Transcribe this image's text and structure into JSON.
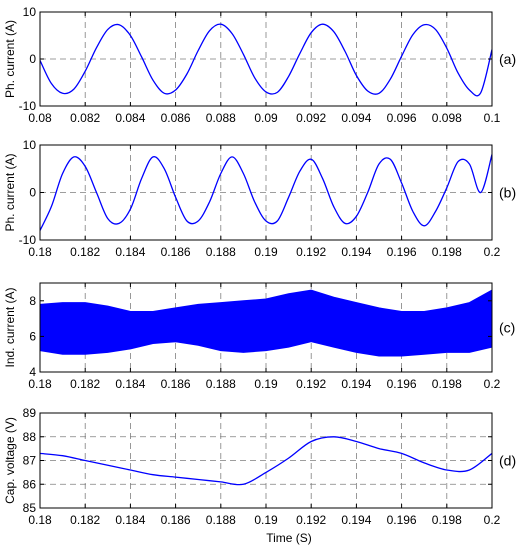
{
  "figure": {
    "xlabel": "Time (S)"
  },
  "chart_data": [
    {
      "type": "line",
      "panel_label": "(a)",
      "ylabel": "Ph. current (A)",
      "xlim": [
        0.08,
        0.1
      ],
      "ylim": [
        -10,
        10
      ],
      "xticks": [
        0.08,
        0.082,
        0.084,
        0.086,
        0.088,
        0.09,
        0.092,
        0.094,
        0.096,
        0.098,
        0.1
      ],
      "xtick_labels": [
        "0.08",
        "0.082",
        "0.084",
        "0.086",
        "0.088",
        "0.09",
        "0.092",
        "0.094",
        "0.096",
        "0.098",
        "0.1"
      ],
      "yticks": [
        -10,
        0,
        10
      ],
      "ytick_labels": [
        "-10",
        "0",
        "10"
      ],
      "grid": true,
      "color": "#0000ff",
      "series": [
        {
          "x": [
            0.08,
            0.0805,
            0.081,
            0.0815,
            0.082,
            0.0825,
            0.083,
            0.0835,
            0.084,
            0.0845,
            0.085,
            0.0855,
            0.086,
            0.0865,
            0.087,
            0.0875,
            0.088,
            0.0885,
            0.089,
            0.0895,
            0.09,
            0.0905,
            0.091,
            0.0915,
            0.092,
            0.0925,
            0.093,
            0.0935,
            0.094,
            0.0945,
            0.095,
            0.0955,
            0.096,
            0.0965,
            0.097,
            0.0975,
            0.098,
            0.0985,
            0.099,
            0.0995,
            0.1
          ],
          "y": [
            -0.3,
            -5.2,
            -7.3,
            -6.4,
            -2.6,
            2.4,
            6.3,
            7.3,
            5.0,
            0.4,
            -4.5,
            -7.3,
            -6.6,
            -3.2,
            1.8,
            6.0,
            7.4,
            5.4,
            1.0,
            -4.0,
            -7.0,
            -7.1,
            -3.7,
            1.2,
            5.6,
            7.4,
            5.8,
            1.6,
            -3.5,
            -6.8,
            -7.3,
            -4.3,
            0.6,
            5.2,
            7.3,
            6.3,
            2.3,
            -3.0,
            -6.6,
            -7.2,
            2.0
          ]
        }
      ]
    },
    {
      "type": "line",
      "panel_label": "(b)",
      "ylabel": "Ph. current (A)",
      "xlim": [
        0.18,
        0.2
      ],
      "ylim": [
        -10,
        10
      ],
      "xticks": [
        0.18,
        0.182,
        0.184,
        0.186,
        0.188,
        0.19,
        0.192,
        0.194,
        0.196,
        0.198,
        0.2
      ],
      "xtick_labels": [
        "0.18",
        "0.182",
        "0.184",
        "0.186",
        "0.188",
        "0.19",
        "0.192",
        "0.194",
        "0.196",
        "0.198",
        "0.2"
      ],
      "yticks": [
        -10,
        0,
        10
      ],
      "ytick_labels": [
        "-10",
        "0",
        "10"
      ],
      "grid": true,
      "color": "#0000ff",
      "series": [
        {
          "x": [
            0.18,
            0.1805,
            0.181,
            0.1815,
            0.182,
            0.1825,
            0.183,
            0.1835,
            0.184,
            0.1845,
            0.185,
            0.1855,
            0.186,
            0.1865,
            0.187,
            0.1875,
            0.188,
            0.1885,
            0.189,
            0.1895,
            0.19,
            0.1905,
            0.191,
            0.1915,
            0.192,
            0.1925,
            0.193,
            0.1935,
            0.194,
            0.1945,
            0.195,
            0.1955,
            0.196,
            0.1965,
            0.197,
            0.1975,
            0.198,
            0.1985,
            0.199,
            0.1995,
            0.2
          ],
          "y": [
            -8.0,
            -3.0,
            4.0,
            7.5,
            5.5,
            0.0,
            -5.5,
            -6.5,
            -3.5,
            3.0,
            7.5,
            5.0,
            -1.0,
            -6.0,
            -6.0,
            -2.0,
            4.0,
            7.5,
            4.0,
            -2.0,
            -6.0,
            -6.0,
            -1.0,
            4.5,
            7.0,
            3.0,
            -3.0,
            -6.5,
            -5.0,
            0.0,
            6.0,
            7.0,
            2.0,
            -4.0,
            -7.0,
            -4.0,
            1.0,
            6.5,
            6.0,
            0.0,
            8.0
          ]
        }
      ]
    },
    {
      "type": "area",
      "panel_label": "(c)",
      "ylabel": "Ind. current (A)",
      "xlim": [
        0.18,
        0.2
      ],
      "ylim": [
        4,
        9
      ],
      "xticks": [
        0.18,
        0.182,
        0.184,
        0.186,
        0.188,
        0.19,
        0.192,
        0.194,
        0.196,
        0.198,
        0.2
      ],
      "xtick_labels": [
        "0.18",
        "0.182",
        "0.184",
        "0.186",
        "0.188",
        "0.19",
        "0.192",
        "0.194",
        "0.196",
        "0.198",
        "0.2"
      ],
      "yticks": [
        4,
        6,
        8
      ],
      "ytick_labels": [
        "4",
        "6",
        "8"
      ],
      "grid": true,
      "color": "#0000ff",
      "band": {
        "x": [
          0.18,
          0.181,
          0.182,
          0.183,
          0.184,
          0.185,
          0.186,
          0.187,
          0.188,
          0.189,
          0.19,
          0.191,
          0.192,
          0.193,
          0.194,
          0.195,
          0.196,
          0.197,
          0.198,
          0.199,
          0.2
        ],
        "upper": [
          7.8,
          7.9,
          7.9,
          7.7,
          7.4,
          7.4,
          7.6,
          7.8,
          7.9,
          8.0,
          8.1,
          8.4,
          8.6,
          8.2,
          7.9,
          7.6,
          7.4,
          7.4,
          7.6,
          7.9,
          8.6
        ],
        "lower": [
          5.2,
          5.0,
          5.0,
          5.1,
          5.3,
          5.6,
          5.7,
          5.5,
          5.2,
          5.1,
          5.2,
          5.4,
          5.7,
          5.4,
          5.1,
          4.9,
          4.9,
          5.0,
          5.1,
          5.1,
          5.4
        ]
      }
    },
    {
      "type": "line",
      "panel_label": "(d)",
      "ylabel": "Cap. voltage (V)",
      "xlim": [
        0.18,
        0.2
      ],
      "ylim": [
        85,
        89
      ],
      "xticks": [
        0.18,
        0.182,
        0.184,
        0.186,
        0.188,
        0.19,
        0.192,
        0.194,
        0.196,
        0.198,
        0.2
      ],
      "xtick_labels": [
        "0.18",
        "0.182",
        "0.184",
        "0.186",
        "0.188",
        "0.19",
        "0.192",
        "0.194",
        "0.196",
        "0.198",
        "0.2"
      ],
      "yticks": [
        85,
        86,
        87,
        88,
        89
      ],
      "ytick_labels": [
        "85",
        "86",
        "87",
        "88",
        "89"
      ],
      "grid": true,
      "color": "#0000ff",
      "series": [
        {
          "x": [
            0.18,
            0.181,
            0.182,
            0.183,
            0.184,
            0.185,
            0.186,
            0.187,
            0.188,
            0.189,
            0.19,
            0.191,
            0.192,
            0.193,
            0.194,
            0.195,
            0.196,
            0.197,
            0.198,
            0.199,
            0.2
          ],
          "y": [
            87.3,
            87.2,
            87.0,
            86.8,
            86.6,
            86.4,
            86.3,
            86.2,
            86.1,
            86.0,
            86.5,
            87.1,
            87.8,
            88.0,
            87.8,
            87.5,
            87.3,
            86.9,
            86.6,
            86.6,
            87.3
          ]
        }
      ]
    }
  ]
}
